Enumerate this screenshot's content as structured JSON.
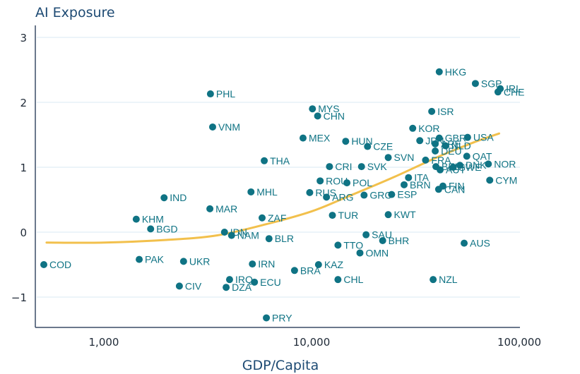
{
  "chart_data": {
    "type": "scatter",
    "title": "AI Exposure",
    "xlabel": "GDP/Capita",
    "ylabel": "AI Exposure",
    "xscale": "log",
    "xlim": [
      470,
      100000
    ],
    "ylim": [
      -1.45,
      3.0
    ],
    "xticks": [
      1000,
      10000,
      100000
    ],
    "xtick_labels": [
      "1,000",
      "10,000",
      "100,000"
    ],
    "yticks": [
      3,
      2,
      1,
      0,
      -1
    ],
    "ytick_labels": [
      "3",
      "2",
      "1",
      "0",
      "−1"
    ],
    "grid": "horizontal",
    "colors": {
      "points": "#0f7384",
      "trend": "#f2c04c",
      "title": "#1d4a73"
    },
    "trend_line": {
      "description": "fitted curve",
      "points": [
        [
          530,
          -0.16
        ],
        [
          1000,
          -0.16
        ],
        [
          2000,
          -0.12
        ],
        [
          3500,
          -0.05
        ],
        [
          6000,
          0.12
        ],
        [
          10000,
          0.32
        ],
        [
          15000,
          0.55
        ],
        [
          25000,
          0.85
        ],
        [
          40000,
          1.15
        ],
        [
          60000,
          1.38
        ],
        [
          80000,
          1.52
        ]
      ]
    },
    "points": [
      {
        "label": "COD",
        "x": 514,
        "y": -0.5
      },
      {
        "label": "KHM",
        "x": 1432,
        "y": 0.2
      },
      {
        "label": "BGD",
        "x": 1680,
        "y": 0.05
      },
      {
        "label": "PAK",
        "x": 1480,
        "y": -0.42
      },
      {
        "label": "IND",
        "x": 1950,
        "y": 0.53
      },
      {
        "label": "UKR",
        "x": 2420,
        "y": -0.45
      },
      {
        "label": "CIV",
        "x": 2310,
        "y": -0.83
      },
      {
        "label": "PHL",
        "x": 3260,
        "y": 2.13
      },
      {
        "label": "VNM",
        "x": 3340,
        "y": 1.62
      },
      {
        "label": "MAR",
        "x": 3240,
        "y": 0.36
      },
      {
        "label": "IDN",
        "x": 3810,
        "y": 0.0
      },
      {
        "label": "NAM",
        "x": 4120,
        "y": -0.05
      },
      {
        "label": "IRQ",
        "x": 4030,
        "y": -0.73
      },
      {
        "label": "DZA",
        "x": 3880,
        "y": -0.85
      },
      {
        "label": "ZAF",
        "x": 5780,
        "y": 0.22
      },
      {
        "label": "MHL",
        "x": 5110,
        "y": 0.62
      },
      {
        "label": "THA",
        "x": 5920,
        "y": 1.1
      },
      {
        "label": "BLR",
        "x": 6240,
        "y": -0.1
      },
      {
        "label": "IRN",
        "x": 5190,
        "y": -0.49
      },
      {
        "label": "ECU",
        "x": 5310,
        "y": -0.77
      },
      {
        "label": "PRY",
        "x": 6060,
        "y": -1.32
      },
      {
        "label": "BRA",
        "x": 8280,
        "y": -0.59
      },
      {
        "label": "KAZ",
        "x": 10800,
        "y": -0.5
      },
      {
        "label": "MEX",
        "x": 9100,
        "y": 1.45
      },
      {
        "label": "MYS",
        "x": 10100,
        "y": 1.9
      },
      {
        "label": "CHN",
        "x": 10700,
        "y": 1.79
      },
      {
        "label": "CRI",
        "x": 12200,
        "y": 1.01
      },
      {
        "label": "ROU",
        "x": 11000,
        "y": 0.79
      },
      {
        "label": "RUS",
        "x": 9800,
        "y": 0.61
      },
      {
        "label": "ARG",
        "x": 11800,
        "y": 0.54
      },
      {
        "label": "TUR",
        "x": 12600,
        "y": 0.26
      },
      {
        "label": "HUN",
        "x": 14600,
        "y": 1.4
      },
      {
        "label": "POL",
        "x": 14800,
        "y": 0.76
      },
      {
        "label": "SVK",
        "x": 17400,
        "y": 1.01
      },
      {
        "label": "CZE",
        "x": 18600,
        "y": 1.32
      },
      {
        "label": "GRC",
        "x": 17900,
        "y": 0.57
      },
      {
        "label": "TTO",
        "x": 13400,
        "y": -0.2
      },
      {
        "label": "OMN",
        "x": 17100,
        "y": -0.32
      },
      {
        "label": "SAU",
        "x": 18300,
        "y": -0.04
      },
      {
        "label": "CHL",
        "x": 13400,
        "y": -0.73
      },
      {
        "label": "SVN",
        "x": 23400,
        "y": 1.15
      },
      {
        "label": "BHR",
        "x": 22000,
        "y": -0.13
      },
      {
        "label": "KWT",
        "x": 23400,
        "y": 0.27
      },
      {
        "label": "ESP",
        "x": 24300,
        "y": 0.58
      },
      {
        "label": "HKG",
        "x": 41200,
        "y": 2.47
      },
      {
        "label": "SGP",
        "x": 61500,
        "y": 2.29
      },
      {
        "label": "IRL",
        "x": 81000,
        "y": 2.21
      },
      {
        "label": "CHE",
        "x": 79000,
        "y": 2.16
      },
      {
        "label": "ISR",
        "x": 37900,
        "y": 1.86
      },
      {
        "label": "KOR",
        "x": 30700,
        "y": 1.6
      },
      {
        "label": "JPN",
        "x": 33200,
        "y": 1.41
      },
      {
        "label": "GBR",
        "x": 41200,
        "y": 1.45
      },
      {
        "label": "USA",
        "x": 56400,
        "y": 1.46
      },
      {
        "label": "ARE",
        "x": 39400,
        "y": 1.36
      },
      {
        "label": "NLD",
        "x": 44200,
        "y": 1.33
      },
      {
        "label": "DEU",
        "x": 39400,
        "y": 1.25
      },
      {
        "label": "QAT",
        "x": 55900,
        "y": 1.17
      },
      {
        "label": "FRA",
        "x": 35400,
        "y": 1.11
      },
      {
        "label": "BEL",
        "x": 39700,
        "y": 1.01
      },
      {
        "label": "AUT",
        "x": 41600,
        "y": 0.96
      },
      {
        "label": "DNK",
        "x": 51800,
        "y": 1.03
      },
      {
        "label": "SWE",
        "x": 48100,
        "y": 1.0
      },
      {
        "label": "NOR",
        "x": 71000,
        "y": 1.05
      },
      {
        "label": "ITA",
        "x": 29300,
        "y": 0.84
      },
      {
        "label": "BRN",
        "x": 27900,
        "y": 0.73
      },
      {
        "label": "FIN",
        "x": 42900,
        "y": 0.71
      },
      {
        "label": "CAN",
        "x": 40900,
        "y": 0.66
      },
      {
        "label": "CYM",
        "x": 72100,
        "y": 0.8
      },
      {
        "label": "AUS",
        "x": 54300,
        "y": -0.17
      },
      {
        "label": "NZL",
        "x": 38500,
        "y": -0.73
      }
    ]
  }
}
